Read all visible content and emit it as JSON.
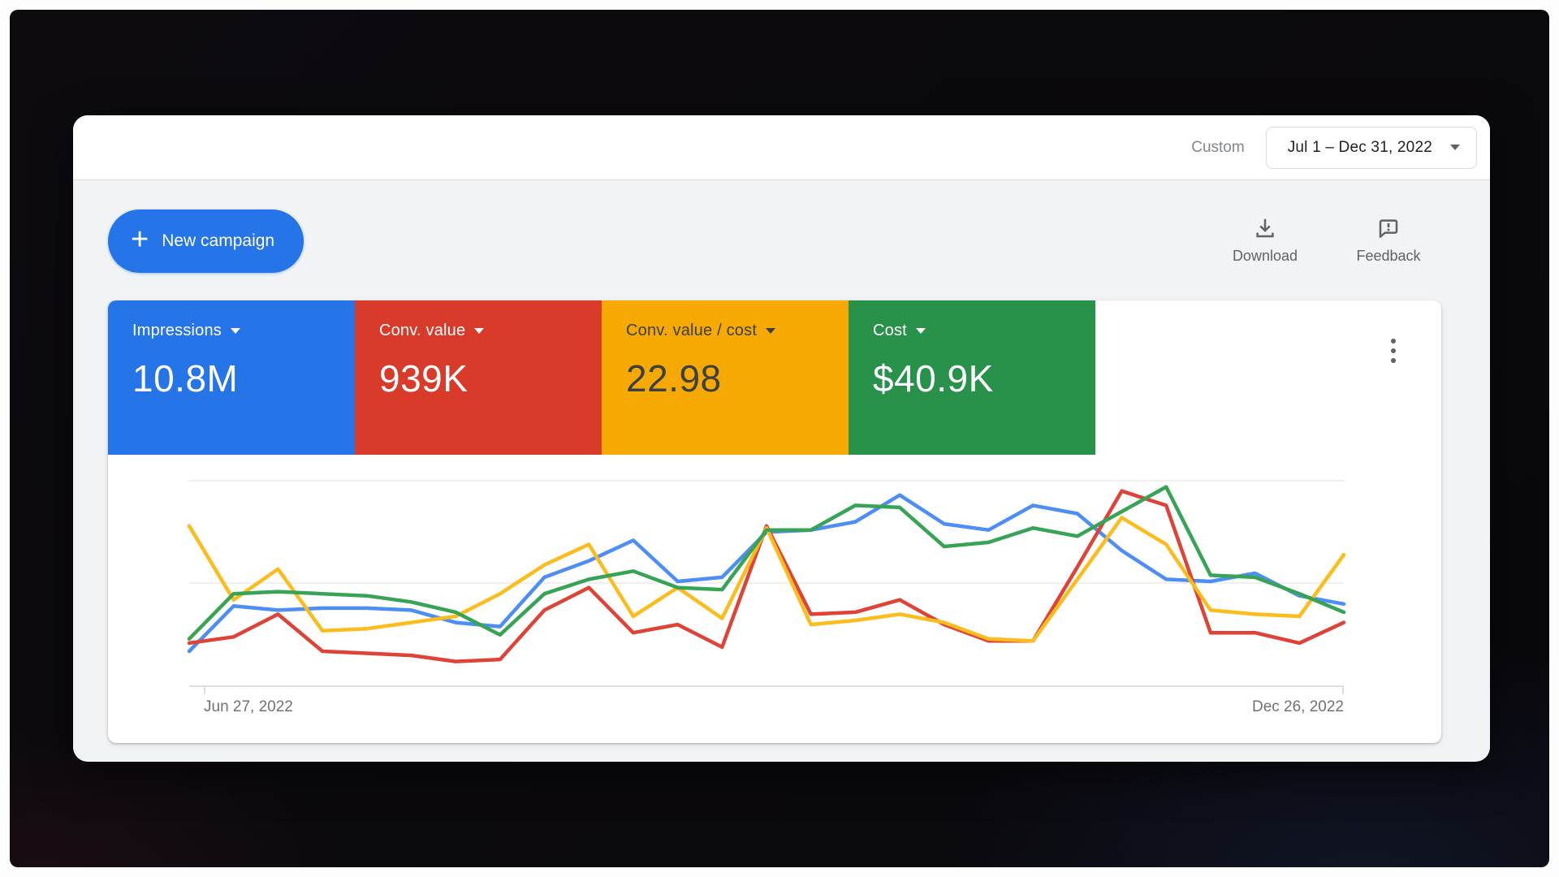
{
  "frame": {
    "border_color": "#fdfdfe",
    "backdrop_color": "#0b0a0f"
  },
  "header": {
    "custom_label": "Custom",
    "date_range": "Jul 1 – Dec 31, 2022"
  },
  "toolbar": {
    "new_campaign": "New campaign",
    "download": "Download",
    "feedback": "Feedback"
  },
  "metrics": [
    {
      "label": "Impressions",
      "value": "10.8M",
      "color": "#2574e8",
      "text_color": "#ffffff"
    },
    {
      "label": "Conv. value",
      "value": "939K",
      "color": "#d93b2b",
      "text_color": "#ffffff"
    },
    {
      "label": "Conv. value / cost",
      "value": "22.98",
      "color": "#f7a903",
      "text_color": "#3c4043"
    },
    {
      "label": "Cost",
      "value": "$40.9K",
      "color": "#28924a",
      "text_color": "#ffffff"
    }
  ],
  "chart_data": {
    "type": "line",
    "title": "",
    "x_unit": "week",
    "x_start_label": "Jun 27, 2022",
    "x_end_label": "Dec 26, 2022",
    "ylim": [
      0,
      100
    ],
    "grid": true,
    "legend": "none",
    "note": "No y-axis labels are shown in the UI; values are normalized 0-100 estimates of each weekly point read from the plot.",
    "series": [
      {
        "name": "Impressions",
        "color": "#4d8ef5",
        "values": [
          17,
          39,
          37,
          38,
          38,
          37,
          31,
          29,
          53,
          61,
          71,
          51,
          53,
          75,
          76,
          80,
          93,
          79,
          76,
          88,
          84,
          66,
          52,
          51,
          55,
          44,
          40
        ]
      },
      {
        "name": "Conv. value",
        "color": "#df4237",
        "values": [
          21,
          24,
          35,
          17,
          16,
          15,
          12,
          13,
          37,
          48,
          26,
          30,
          19,
          78,
          35,
          36,
          42,
          30,
          22,
          22,
          58,
          95,
          88,
          26,
          26,
          21,
          31
        ]
      },
      {
        "name": "Conv. value / cost",
        "color": "#fbbc1c",
        "values": [
          78,
          42,
          57,
          27,
          28,
          31,
          34,
          45,
          59,
          69,
          34,
          48,
          33,
          77,
          30,
          32,
          35,
          31,
          23,
          22,
          52,
          82,
          69,
          37,
          35,
          34,
          64
        ]
      },
      {
        "name": "Cost",
        "color": "#37a355",
        "values": [
          23,
          45,
          46,
          45,
          44,
          41,
          36,
          25,
          45,
          52,
          56,
          48,
          47,
          76,
          76,
          88,
          87,
          68,
          70,
          77,
          73,
          85,
          97,
          54,
          53,
          45,
          36
        ]
      }
    ]
  }
}
